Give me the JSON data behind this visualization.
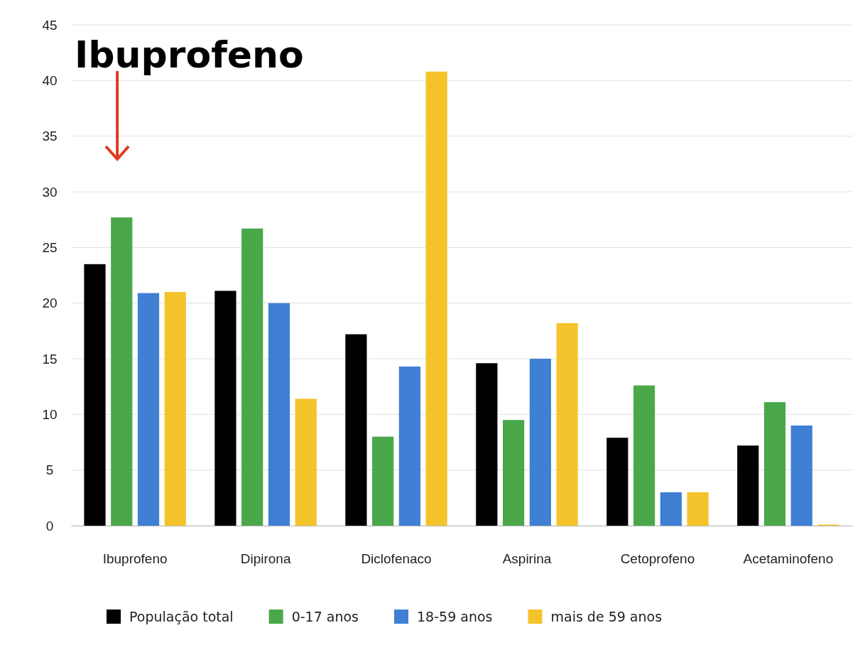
{
  "chart_data": {
    "type": "bar",
    "title": "Ibuprofeno",
    "categories": [
      "Ibuprofeno",
      "Dipirona",
      "Diclofenaco",
      "Aspirina",
      "Cetoprofeno",
      "Acetaminofeno"
    ],
    "series": [
      {
        "name": "População total",
        "color": "#000000",
        "values": [
          23.5,
          21.1,
          17.2,
          14.6,
          7.9,
          7.2
        ]
      },
      {
        "name": "0-17 anos",
        "color": "#4aa84a",
        "values": [
          27.7,
          26.7,
          8.0,
          9.5,
          12.6,
          11.1
        ]
      },
      {
        "name": "18-59 anos",
        "color": "#3f7fd4",
        "values": [
          20.9,
          20.0,
          14.3,
          15.0,
          3.0,
          9.0
        ]
      },
      {
        "name": "mais de 59 anos",
        "color": "#f4c32c",
        "values": [
          21.0,
          11.4,
          40.8,
          18.2,
          3.0,
          0.1
        ]
      }
    ],
    "ylim": [
      0,
      45
    ],
    "yticks": [
      0,
      5,
      10,
      15,
      20,
      25,
      30,
      35,
      40,
      45
    ],
    "grid": "y",
    "legend": "bottom"
  }
}
